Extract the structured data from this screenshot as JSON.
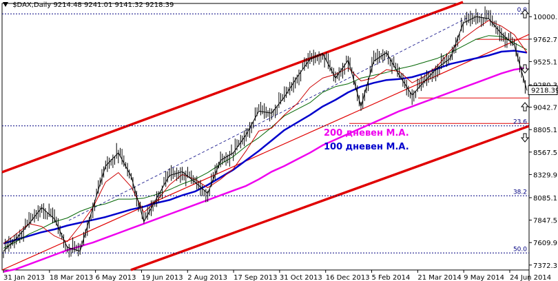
{
  "header": {
    "symbol": "$DAX,Daily",
    "ohlc": "9214.48 9241.01 9141.32 9218.39"
  },
  "annotations": {
    "ma200": "200 дневен M.A.",
    "ma100": "100 дневен M.A."
  },
  "colors": {
    "price": "#000000",
    "ma200": "#ee00ee",
    "ma100": "#0000cc",
    "ma_mid": "#006400",
    "ma_fast": "#cc0000",
    "channel": "#e00000",
    "fib": "#000080",
    "price_tag_bg": "#ffffff"
  },
  "chart_data": {
    "type": "line",
    "title": "$DAX,Daily",
    "xlabel": "",
    "ylabel": "",
    "ylim": [
      7320,
      10140
    ],
    "x_tick_labels": [
      "31 Jan 2013",
      "18 Mar 2013",
      "6 May 2013",
      "19 Jun 2013",
      "2 Aug 2013",
      "17 Sep 2013",
      "31 Oct 2013",
      "16 Dec 2013",
      "5 Feb 2014",
      "21 Mar 2014",
      "9 May 2014",
      "24 Jun 2014"
    ],
    "y_tick_labels": [
      10000.3,
      9762.7,
      9525.1,
      9280.3,
      9042.7,
      8805.1,
      8567.5,
      8329.9,
      8085.1,
      7847.5,
      7609.9,
      7372.3
    ],
    "last_price": 9218.39,
    "fib_levels": [
      {
        "label": "0.0",
        "value": 10030
      },
      {
        "label": "23.6",
        "value": 8845
      },
      {
        "label": "38.2",
        "value": 8105
      },
      {
        "label": "50.0",
        "value": 7500
      }
    ],
    "horizontal_lines": [
      9760,
      9140,
      8870
    ],
    "series": [
      {
        "name": "200 дневен M.A.",
        "values": [
          7300,
          7330,
          7380,
          7430,
          7480,
          7530,
          7570,
          7610,
          7660,
          7710,
          7760,
          7810,
          7860,
          7910,
          7960,
          8010,
          8060,
          8110,
          8160,
          8210,
          8280,
          8360,
          8420,
          8490,
          8560,
          8640,
          8700,
          8760,
          8820,
          8880,
          8940,
          9000,
          9050,
          9100,
          9150,
          9200,
          9250,
          9300,
          9350,
          9400,
          9440,
          9460
        ]
      },
      {
        "name": "100 дневен M.A.",
        "values": [
          7600,
          7640,
          7680,
          7720,
          7750,
          7790,
          7820,
          7850,
          7880,
          7920,
          7960,
          7990,
          8030,
          8060,
          8110,
          8150,
          8220,
          8300,
          8380,
          8480,
          8580,
          8690,
          8800,
          8880,
          8960,
          9050,
          9120,
          9200,
          9260,
          9300,
          9330,
          9340,
          9360,
          9400,
          9450,
          9500,
          9530,
          9560,
          9590,
          9630,
          9640,
          9620
        ]
      },
      {
        "name": "",
        "values": [
          7550,
          7620,
          7700,
          7760,
          7830,
          7870,
          7940,
          7990,
          8020,
          8070,
          8070,
          8080,
          8120,
          8170,
          8230,
          8280,
          8350,
          8440,
          8520,
          8630,
          8720,
          8830,
          8950,
          9020,
          9090,
          9200,
          9260,
          9290,
          9350,
          9380,
          9410,
          9450,
          9480,
          9520,
          9560,
          9620,
          9690,
          9760,
          9800,
          9790,
          9720,
          9650
        ]
      },
      {
        "name": "",
        "values": [
          7600,
          7700,
          7810,
          7780,
          7680,
          7620,
          7790,
          7980,
          8250,
          8350,
          8200,
          7930,
          8050,
          8220,
          8330,
          8280,
          8190,
          8280,
          8390,
          8580,
          8790,
          8820,
          8960,
          9080,
          9250,
          9350,
          9390,
          9460,
          9320,
          9350,
          9440,
          9420,
          9300,
          9370,
          9480,
          9640,
          9770,
          9870,
          9960,
          9900,
          9810,
          9620
        ]
      },
      {
        "name": "",
        "values": [
          7520,
          7650,
          7810,
          7980,
          7860,
          7560,
          7520,
          7980,
          8420,
          8560,
          8310,
          7830,
          8080,
          8320,
          8360,
          8250,
          8130,
          8480,
          8560,
          8750,
          9000,
          8980,
          9150,
          9360,
          9550,
          9610,
          9350,
          9540,
          9050,
          9530,
          9620,
          9380,
          9170,
          9320,
          9460,
          9560,
          9930,
          10000,
          9980,
          9820,
          9700,
          9218
        ]
      }
    ]
  }
}
